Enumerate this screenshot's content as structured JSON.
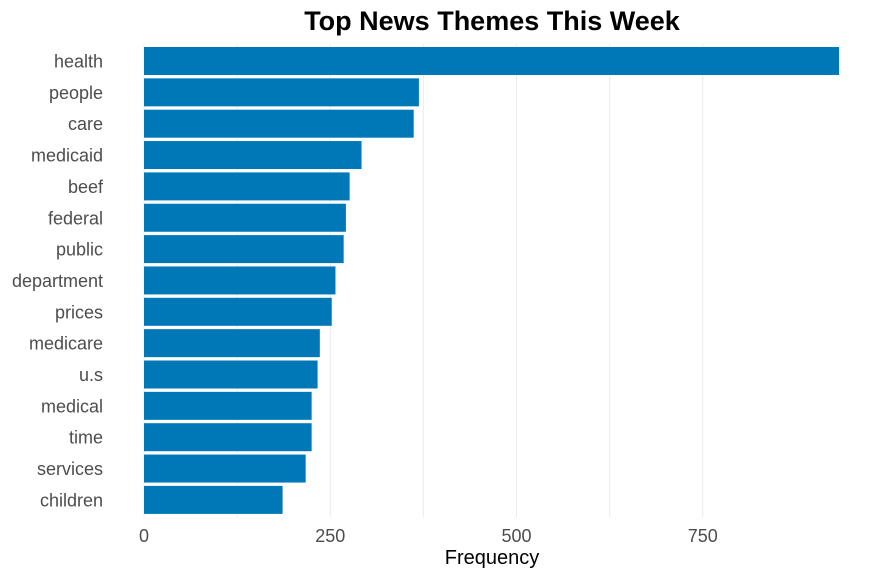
{
  "chart_data": {
    "type": "bar",
    "orientation": "horizontal",
    "title": "Top News Themes This Week",
    "xlabel": "Frequency",
    "ylabel": "",
    "categories": [
      "health",
      "people",
      "care",
      "medicaid",
      "beef",
      "federal",
      "public",
      "department",
      "prices",
      "medicare",
      "u.s",
      "medical",
      "time",
      "services",
      "children"
    ],
    "values": [
      933,
      369,
      362,
      292,
      276,
      271,
      268,
      257,
      252,
      236,
      233,
      225,
      225,
      217,
      186
    ],
    "xlim": [
      0,
      935
    ],
    "ticks": [
      0,
      250,
      500,
      750
    ],
    "tick_labels": [
      "0",
      "250",
      "500",
      "750"
    ],
    "grid": true,
    "legend": "none",
    "bar_color": "#0077b6"
  }
}
